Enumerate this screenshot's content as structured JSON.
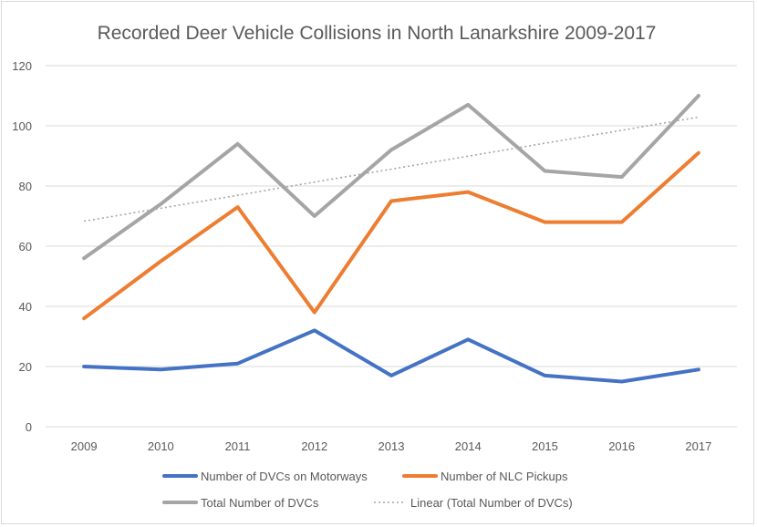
{
  "chart_data": {
    "type": "line",
    "title": "Recorded Deer Vehicle Collisions in North Lanarkshire 2009-2017",
    "xlabel": "",
    "ylabel": "",
    "categories": [
      "2009",
      "2010",
      "2011",
      "2012",
      "2013",
      "2014",
      "2015",
      "2016",
      "2017"
    ],
    "ylim": [
      0,
      120
    ],
    "yticks": [
      "0",
      "20",
      "40",
      "60",
      "80",
      "100",
      "120"
    ],
    "grid": true,
    "legend_position": "bottom",
    "series": [
      {
        "name": "Number of DVCs on Motorways",
        "values": [
          20,
          19,
          21,
          32,
          17,
          29,
          17,
          15,
          19
        ],
        "color": "#4472c4",
        "style": "solid"
      },
      {
        "name": "Number of NLC Pickups",
        "values": [
          36,
          55,
          73,
          38,
          75,
          78,
          68,
          68,
          91
        ],
        "color": "#ed7d31",
        "style": "solid"
      },
      {
        "name": "Total Number of DVCs",
        "values": [
          56,
          74,
          94,
          70,
          92,
          107,
          85,
          83,
          110
        ],
        "color": "#a5a5a5",
        "style": "solid"
      },
      {
        "name": "Linear (Total Number of DVCs)",
        "values": [
          68.3,
          72.6,
          76.9,
          81.3,
          85.6,
          89.9,
          94.2,
          98.5,
          102.9
        ],
        "color": "#a5a5a5",
        "style": "dotted"
      }
    ]
  }
}
